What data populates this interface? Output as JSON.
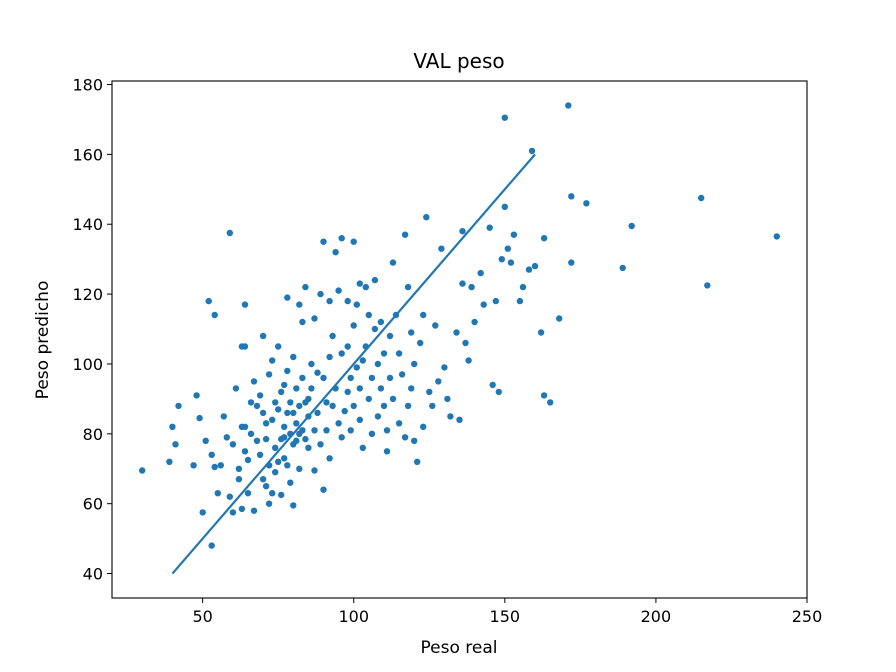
{
  "chart_data": {
    "type": "scatter",
    "title": "VAL peso",
    "xlabel": "Peso real",
    "ylabel": "Peso predicho",
    "xlim": [
      20,
      250
    ],
    "ylim": [
      33,
      181
    ],
    "xticks": [
      50,
      100,
      150,
      200,
      250
    ],
    "yticks": [
      40,
      60,
      80,
      100,
      120,
      140,
      160,
      180
    ],
    "grid": false,
    "legend": "none",
    "color": "#1f77b4",
    "reference_line": {
      "x": [
        40,
        160
      ],
      "y": [
        40,
        160
      ]
    },
    "points": [
      [
        30,
        69.5
      ],
      [
        39,
        72
      ],
      [
        40,
        82
      ],
      [
        41,
        77
      ],
      [
        42,
        88
      ],
      [
        47,
        71
      ],
      [
        48,
        91
      ],
      [
        49,
        84.5
      ],
      [
        50,
        57.5
      ],
      [
        51,
        78
      ],
      [
        52,
        118
      ],
      [
        53,
        74
      ],
      [
        53,
        48
      ],
      [
        54,
        70.5
      ],
      [
        54,
        114
      ],
      [
        55,
        63
      ],
      [
        56,
        71
      ],
      [
        57,
        85
      ],
      [
        58,
        79
      ],
      [
        59,
        137.5
      ],
      [
        59,
        62
      ],
      [
        60,
        57.5
      ],
      [
        60,
        77
      ],
      [
        61,
        93
      ],
      [
        62,
        70
      ],
      [
        62,
        67
      ],
      [
        63,
        82
      ],
      [
        63,
        105
      ],
      [
        63,
        58.5
      ],
      [
        64,
        105
      ],
      [
        64,
        117
      ],
      [
        64,
        82
      ],
      [
        64,
        75
      ],
      [
        65,
        63
      ],
      [
        65,
        72.5
      ],
      [
        66,
        80
      ],
      [
        66,
        89
      ],
      [
        67,
        58
      ],
      [
        67,
        95
      ],
      [
        68,
        78
      ],
      [
        68,
        88
      ],
      [
        69,
        74
      ],
      [
        69,
        91
      ],
      [
        70,
        67
      ],
      [
        70,
        86
      ],
      [
        70,
        108
      ],
      [
        71,
        78.5
      ],
      [
        71,
        83
      ],
      [
        71,
        65
      ],
      [
        72,
        97
      ],
      [
        72,
        71
      ],
      [
        72,
        60
      ],
      [
        73,
        84
      ],
      [
        73,
        101
      ],
      [
        73,
        63
      ],
      [
        74,
        89
      ],
      [
        74,
        76
      ],
      [
        74,
        69
      ],
      [
        75,
        87
      ],
      [
        75,
        105
      ],
      [
        75,
        72
      ],
      [
        76,
        78.5
      ],
      [
        76,
        92
      ],
      [
        76,
        62.5
      ],
      [
        77,
        82
      ],
      [
        77,
        94
      ],
      [
        77,
        79
      ],
      [
        77,
        73
      ],
      [
        78,
        86
      ],
      [
        78,
        98
      ],
      [
        78,
        71
      ],
      [
        78,
        119
      ],
      [
        79,
        80
      ],
      [
        79,
        89
      ],
      [
        79,
        66
      ],
      [
        80,
        102
      ],
      [
        80,
        77
      ],
      [
        80,
        86
      ],
      [
        80,
        59.5
      ],
      [
        81,
        83
      ],
      [
        81,
        78
      ],
      [
        81,
        93
      ],
      [
        82,
        117
      ],
      [
        82,
        88
      ],
      [
        82,
        80
      ],
      [
        82,
        70
      ],
      [
        83,
        96
      ],
      [
        83,
        81
      ],
      [
        83,
        112
      ],
      [
        84,
        78.5
      ],
      [
        84,
        89
      ],
      [
        84,
        122
      ],
      [
        85,
        90
      ],
      [
        85,
        85
      ],
      [
        85,
        76
      ],
      [
        86,
        100
      ],
      [
        86,
        93
      ],
      [
        87,
        113
      ],
      [
        87,
        81
      ],
      [
        87,
        69.5
      ],
      [
        88,
        97.5
      ],
      [
        88,
        86
      ],
      [
        89,
        120
      ],
      [
        89,
        77
      ],
      [
        90,
        135
      ],
      [
        90,
        96
      ],
      [
        90,
        64
      ],
      [
        91,
        89
      ],
      [
        91,
        81
      ],
      [
        92,
        102
      ],
      [
        92,
        118
      ],
      [
        92,
        73
      ],
      [
        93,
        88
      ],
      [
        93,
        108
      ],
      [
        94,
        93
      ],
      [
        94,
        132
      ],
      [
        95,
        83
      ],
      [
        95,
        121
      ],
      [
        96,
        103
      ],
      [
        96,
        136
      ],
      [
        96,
        79
      ],
      [
        97,
        86.5
      ],
      [
        98,
        92
      ],
      [
        98,
        118
      ],
      [
        98,
        105
      ],
      [
        99,
        81
      ],
      [
        99,
        96
      ],
      [
        100,
        135
      ],
      [
        100,
        111
      ],
      [
        100,
        88
      ],
      [
        101,
        99
      ],
      [
        101,
        117
      ],
      [
        102,
        123
      ],
      [
        102,
        93
      ],
      [
        102,
        84
      ],
      [
        103,
        76
      ],
      [
        103,
        101
      ],
      [
        104,
        105
      ],
      [
        104,
        122
      ],
      [
        105,
        90
      ],
      [
        105,
        114
      ],
      [
        106,
        80
      ],
      [
        106,
        96
      ],
      [
        107,
        110
      ],
      [
        107,
        124
      ],
      [
        108,
        85
      ],
      [
        108,
        100
      ],
      [
        109,
        93
      ],
      [
        109,
        112
      ],
      [
        110,
        88
      ],
      [
        110,
        103
      ],
      [
        111,
        81
      ],
      [
        111,
        75
      ],
      [
        112,
        108
      ],
      [
        112,
        96
      ],
      [
        113,
        129
      ],
      [
        113,
        90
      ],
      [
        114,
        114
      ],
      [
        115,
        103
      ],
      [
        115,
        83
      ],
      [
        116,
        97
      ],
      [
        117,
        137
      ],
      [
        117,
        79
      ],
      [
        118,
        122
      ],
      [
        118,
        88
      ],
      [
        119,
        109
      ],
      [
        119,
        93
      ],
      [
        120,
        78
      ],
      [
        120,
        100
      ],
      [
        121,
        72
      ],
      [
        122,
        106
      ],
      [
        123,
        114
      ],
      [
        123,
        82
      ],
      [
        124,
        142
      ],
      [
        125,
        92
      ],
      [
        126,
        88
      ],
      [
        127,
        111
      ],
      [
        128,
        95
      ],
      [
        129,
        133
      ],
      [
        130,
        99
      ],
      [
        131,
        90
      ],
      [
        132,
        85
      ],
      [
        134,
        109
      ],
      [
        135,
        84
      ],
      [
        136,
        123
      ],
      [
        136,
        138
      ],
      [
        137,
        106
      ],
      [
        138,
        101
      ],
      [
        139,
        122
      ],
      [
        140,
        112
      ],
      [
        142,
        126
      ],
      [
        143,
        117
      ],
      [
        145,
        139
      ],
      [
        146,
        94
      ],
      [
        147,
        118
      ],
      [
        148,
        92
      ],
      [
        149,
        130
      ],
      [
        150,
        170.5
      ],
      [
        150,
        145
      ],
      [
        151,
        133
      ],
      [
        152,
        129
      ],
      [
        153,
        137
      ],
      [
        155,
        118
      ],
      [
        156,
        122
      ],
      [
        158,
        127
      ],
      [
        159,
        161
      ],
      [
        160,
        128
      ],
      [
        162,
        109
      ],
      [
        163,
        91
      ],
      [
        163,
        136
      ],
      [
        165,
        89
      ],
      [
        168,
        113
      ],
      [
        171,
        174
      ],
      [
        172,
        148
      ],
      [
        172,
        129
      ],
      [
        177,
        146
      ],
      [
        189,
        127.5
      ],
      [
        192,
        139.5
      ],
      [
        215,
        147.5
      ],
      [
        217,
        122.5
      ],
      [
        240,
        136.5
      ]
    ]
  }
}
